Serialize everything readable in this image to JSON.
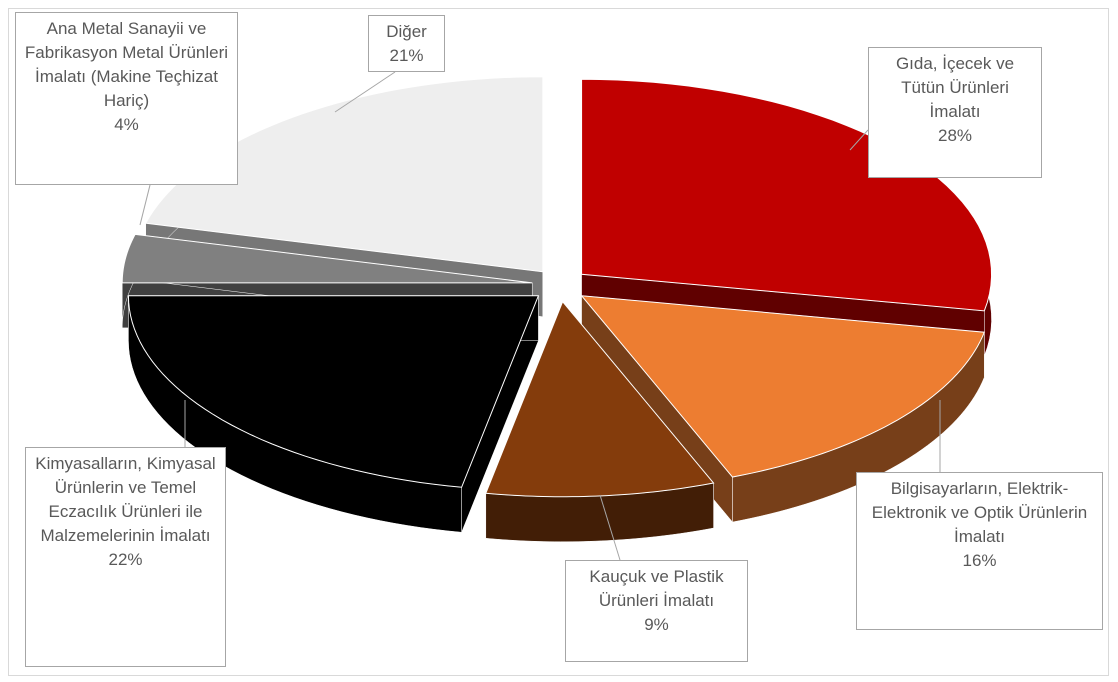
{
  "chart_data": {
    "type": "pie3d",
    "categories": [
      "Gıda, İçecek ve Tütün Ürünleri İmalatı",
      "Bilgisayarların, Elektrik-Elektronik ve Optik Ürünlerin İmalatı",
      "Kauçuk ve Plastik Ürünleri İmalatı",
      "Kimyasalların, Kimyasal Ürünlerin ve Temel Eczacılık Ürünleri ile Malzemelerinin İmalatı",
      "Ana Metal Sanayii ve Fabrikasyon Metal Ürünleri İmalatı (Makine Teçhizat Hariç)",
      "Diğer"
    ],
    "values": [
      28,
      16,
      9,
      22,
      4,
      21
    ],
    "value_labels": [
      "28%",
      "16%",
      "9%",
      "22%",
      "4%",
      "21%"
    ],
    "colors": [
      "#c00000",
      "#ed7d31",
      "#843c0c",
      "#000000",
      "#808080",
      "#eeeeee"
    ]
  }
}
